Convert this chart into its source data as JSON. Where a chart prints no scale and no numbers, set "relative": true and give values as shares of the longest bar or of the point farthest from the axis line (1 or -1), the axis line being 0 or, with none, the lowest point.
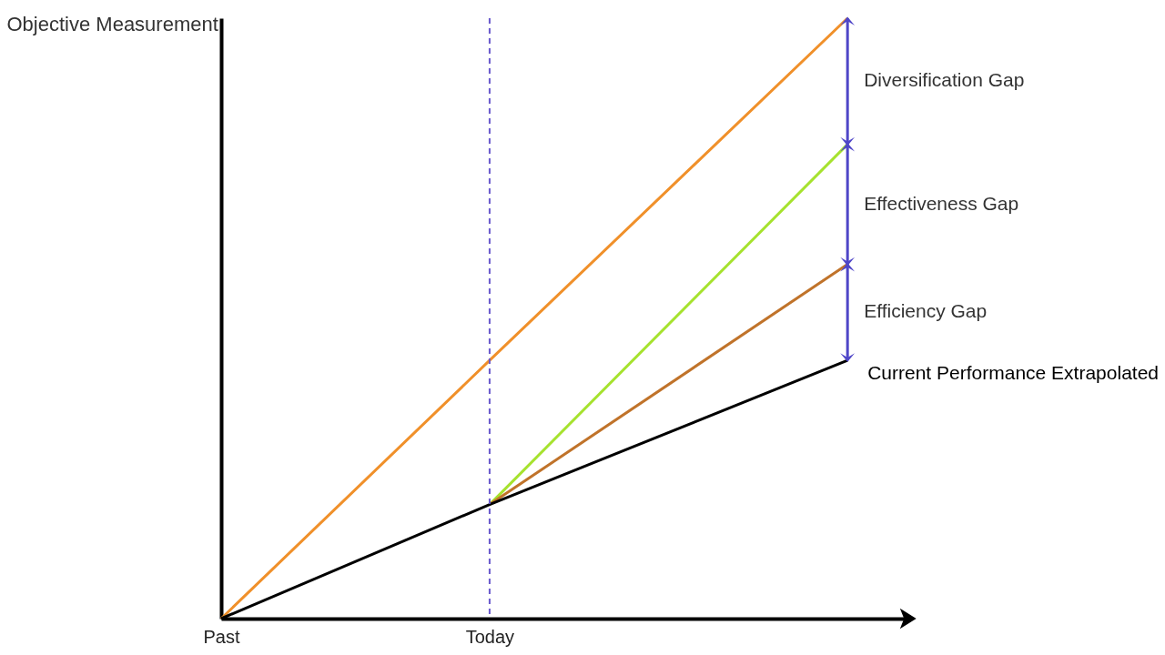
{
  "chart_data": {
    "type": "line",
    "relative": true,
    "ylabel": "Objective Measurement",
    "categories": [
      "Past",
      null,
      null,
      "Today",
      null,
      null,
      null,
      null
    ],
    "tick_labels": "x",
    "grid": false,
    "legend": false,
    "marker": "none",
    "line_style": "solid",
    "series": [
      {
        "color": "#f0902a",
        "values": [
          0,
          null,
          null,
          0.43,
          null,
          null,
          null,
          1.0
        ]
      },
      {
        "color": "#a6e22e",
        "values": [
          null,
          null,
          null,
          0.19,
          null,
          null,
          null,
          0.79
        ]
      },
      {
        "color": "#c0732a",
        "values": [
          null,
          null,
          null,
          0.19,
          null,
          null,
          null,
          0.59
        ]
      },
      {
        "name": "Current Performance Extrapolated",
        "color": "#000000",
        "values": [
          0,
          null,
          null,
          0.19,
          null,
          null,
          null,
          0.43
        ]
      }
    ],
    "ref_lines": [
      {
        "axis": "x",
        "value": "Today",
        "color": "#6a5acd",
        "line_style": "dashed"
      }
    ],
    "annotations": [
      "Diversification Gap",
      "Effectiveness Gap",
      "Efficiency Gap"
    ]
  }
}
